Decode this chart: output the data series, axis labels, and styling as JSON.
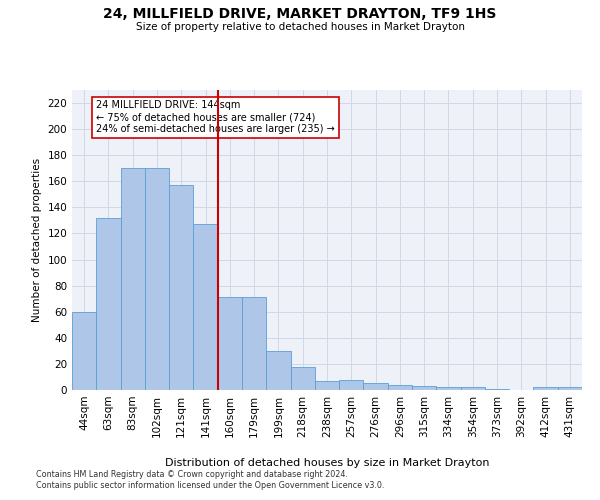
{
  "title": "24, MILLFIELD DRIVE, MARKET DRAYTON, TF9 1HS",
  "subtitle": "Size of property relative to detached houses in Market Drayton",
  "xlabel": "Distribution of detached houses by size in Market Drayton",
  "ylabel": "Number of detached properties",
  "categories": [
    "44sqm",
    "63sqm",
    "83sqm",
    "102sqm",
    "121sqm",
    "141sqm",
    "160sqm",
    "179sqm",
    "199sqm",
    "218sqm",
    "238sqm",
    "257sqm",
    "276sqm",
    "296sqm",
    "315sqm",
    "334sqm",
    "354sqm",
    "373sqm",
    "392sqm",
    "412sqm",
    "431sqm"
  ],
  "values": [
    60,
    132,
    170,
    170,
    157,
    127,
    71,
    71,
    30,
    18,
    7,
    8,
    5,
    4,
    3,
    2,
    2,
    1,
    0,
    2,
    2
  ],
  "bar_color": "#aec6e8",
  "bar_edge_color": "#5a9fd4",
  "vline_x_idx": 5,
  "vline_color": "#cc0000",
  "annotation_text": "24 MILLFIELD DRIVE: 144sqm\n← 75% of detached houses are smaller (724)\n24% of semi-detached houses are larger (235) →",
  "annotation_box_color": "#ffffff",
  "annotation_box_edge": "#cc0000",
  "ylim": [
    0,
    230
  ],
  "yticks": [
    0,
    20,
    40,
    60,
    80,
    100,
    120,
    140,
    160,
    180,
    200,
    220
  ],
  "grid_color": "#d0d8e8",
  "bg_color": "#eef2f8",
  "footer1": "Contains HM Land Registry data © Crown copyright and database right 2024.",
  "footer2": "Contains public sector information licensed under the Open Government Licence v3.0."
}
